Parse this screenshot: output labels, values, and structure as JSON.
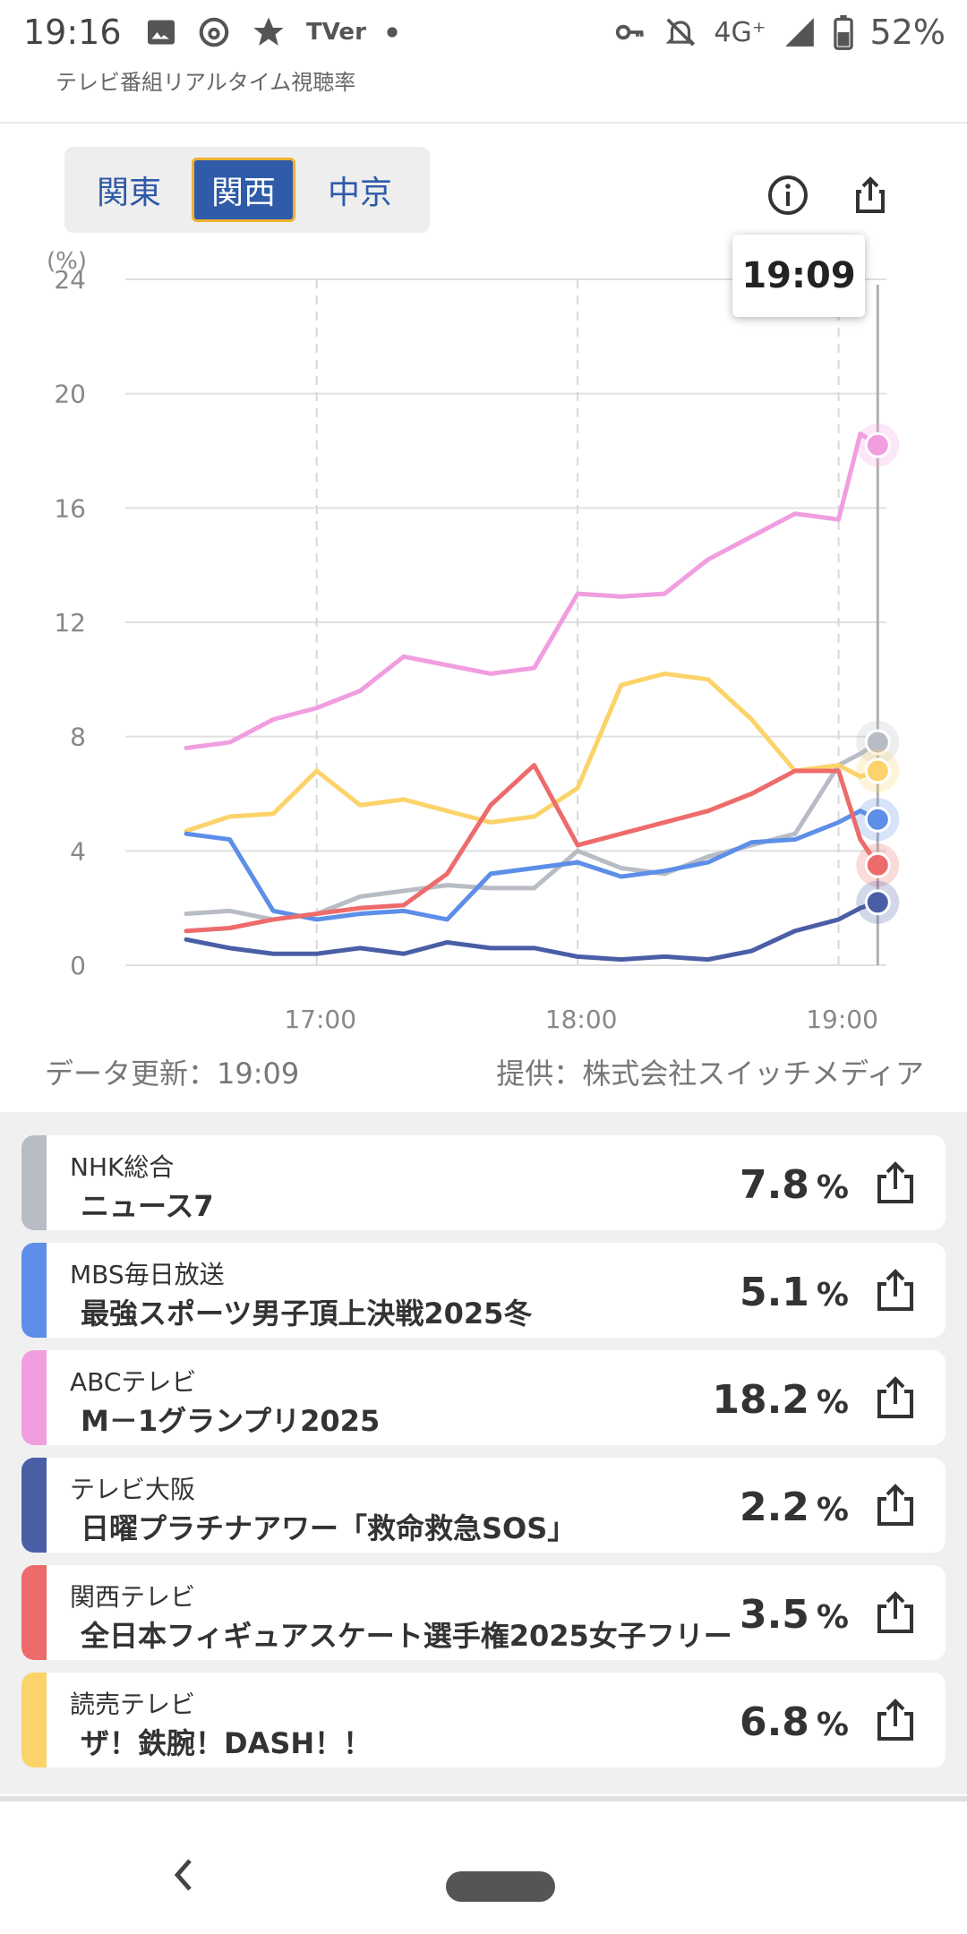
{
  "status_bar": {
    "time": "19:16",
    "left_icons": [
      "image-icon",
      "threads-icon",
      "star-icon",
      "tver-icon",
      "dot-icon"
    ],
    "tver_label": "TVer",
    "network": "4G⁺",
    "battery": "52%"
  },
  "app": {
    "title": "テレビ番組リアルタイム視聴率"
  },
  "region_tabs": [
    {
      "label": "関東",
      "active": false
    },
    {
      "label": "関西",
      "active": true
    },
    {
      "label": "中京",
      "active": false
    }
  ],
  "chart_tooltip": "19:09",
  "chart_data": {
    "type": "line",
    "ylabel": "(%)",
    "ylim": [
      0,
      24
    ],
    "yticks": [
      "0",
      "4",
      "8",
      "12",
      "16",
      "20",
      "24"
    ],
    "xticks": [
      "17:00",
      "18:00",
      "19:00"
    ],
    "x_range": [
      "16:30",
      "19:09"
    ],
    "grid": true,
    "series": [
      {
        "name": "ABCテレビ",
        "color": "#f09ee0",
        "x": [
          "16:30",
          "16:40",
          "16:50",
          "17:00",
          "17:10",
          "17:20",
          "17:30",
          "17:40",
          "17:50",
          "18:00",
          "18:10",
          "18:20",
          "18:30",
          "18:40",
          "18:50",
          "19:00",
          "19:05",
          "19:09"
        ],
        "values": [
          7.6,
          7.8,
          8.6,
          9.0,
          9.6,
          10.8,
          10.5,
          10.2,
          10.4,
          13.0,
          12.9,
          13.0,
          14.2,
          15.0,
          15.8,
          15.6,
          18.6,
          18.2
        ]
      },
      {
        "name": "NHK総合",
        "color": "#b8bcc4",
        "x": [
          "16:30",
          "16:40",
          "16:50",
          "17:00",
          "17:10",
          "17:20",
          "17:30",
          "17:40",
          "17:50",
          "18:00",
          "18:10",
          "18:20",
          "18:30",
          "18:40",
          "18:50",
          "19:00",
          "19:05",
          "19:09"
        ],
        "values": [
          1.8,
          1.9,
          1.6,
          1.8,
          2.4,
          2.6,
          2.8,
          2.7,
          2.7,
          4.0,
          3.4,
          3.2,
          3.8,
          4.2,
          4.6,
          7.0,
          7.4,
          7.8
        ]
      },
      {
        "name": "読売テレビ",
        "color": "#fbd36a",
        "x": [
          "16:30",
          "16:40",
          "16:50",
          "17:00",
          "17:10",
          "17:20",
          "17:30",
          "17:40",
          "17:50",
          "18:00",
          "18:10",
          "18:20",
          "18:30",
          "18:40",
          "18:50",
          "19:00",
          "19:05",
          "19:09"
        ],
        "values": [
          4.7,
          5.2,
          5.3,
          6.8,
          5.6,
          5.8,
          5.4,
          5.0,
          5.2,
          6.2,
          9.8,
          10.2,
          10.0,
          8.6,
          6.8,
          7.0,
          6.6,
          6.8
        ]
      },
      {
        "name": "MBS毎日放送",
        "color": "#5d8ee8",
        "x": [
          "16:30",
          "16:40",
          "16:50",
          "17:00",
          "17:10",
          "17:20",
          "17:30",
          "17:40",
          "17:50",
          "18:00",
          "18:10",
          "18:20",
          "18:30",
          "18:40",
          "18:50",
          "19:00",
          "19:05",
          "19:09"
        ],
        "values": [
          4.6,
          4.4,
          1.9,
          1.6,
          1.8,
          1.9,
          1.6,
          3.2,
          3.4,
          3.6,
          3.1,
          3.3,
          3.6,
          4.3,
          4.4,
          5.0,
          5.4,
          5.1
        ]
      },
      {
        "name": "関西テレビ",
        "color": "#ee6b6b",
        "x": [
          "16:30",
          "16:40",
          "16:50",
          "17:00",
          "17:10",
          "17:20",
          "17:30",
          "17:40",
          "17:50",
          "18:00",
          "18:10",
          "18:20",
          "18:30",
          "18:40",
          "18:50",
          "19:00",
          "19:05",
          "19:09"
        ],
        "values": [
          1.2,
          1.3,
          1.6,
          1.8,
          2.0,
          2.1,
          3.2,
          5.6,
          7.0,
          4.2,
          4.6,
          5.0,
          5.4,
          6.0,
          6.8,
          6.8,
          4.4,
          3.5
        ]
      },
      {
        "name": "テレビ大阪",
        "color": "#4a5ea6",
        "x": [
          "16:30",
          "16:40",
          "16:50",
          "17:00",
          "17:10",
          "17:20",
          "17:30",
          "17:40",
          "17:50",
          "18:00",
          "18:10",
          "18:20",
          "18:30",
          "18:40",
          "18:50",
          "19:00",
          "19:05",
          "19:09"
        ],
        "values": [
          0.9,
          0.6,
          0.4,
          0.4,
          0.6,
          0.4,
          0.8,
          0.6,
          0.6,
          0.3,
          0.2,
          0.3,
          0.2,
          0.5,
          1.2,
          1.6,
          2.0,
          2.2
        ]
      }
    ]
  },
  "update_text": "データ更新：19:09",
  "provider_text": "提供：株式会社スイッチメディア",
  "programs": [
    {
      "station": "NHK総合",
      "program": "ニュース7",
      "rating": "7.8",
      "unit": "%",
      "color": "#b8bcc4"
    },
    {
      "station": "MBS毎日放送",
      "program": "最強スポーツ男子頂上決戦2025冬",
      "rating": "5.1",
      "unit": "%",
      "color": "#5d8ee8"
    },
    {
      "station": "ABCテレビ",
      "program": "M－1グランプリ2025",
      "rating": "18.2",
      "unit": "%",
      "color": "#f09ee0"
    },
    {
      "station": "テレビ大阪",
      "program": "日曜プラチナアワー「救命救急SOS」",
      "rating": "2.2",
      "unit": "%",
      "color": "#4a5ea6"
    },
    {
      "station": "関西テレビ",
      "program": "全日本フィギュアスケート選手権2025女子フリー",
      "rating": "3.5",
      "unit": "%",
      "color": "#ee6b6b"
    },
    {
      "station": "読売テレビ",
      "program": "ザ！鉄腕！DASH！！",
      "rating": "6.8",
      "unit": "%",
      "color": "#fbd36a"
    }
  ],
  "nav": {
    "back_icon": "back-chevron-icon",
    "home_icon": "home-pill-icon"
  }
}
